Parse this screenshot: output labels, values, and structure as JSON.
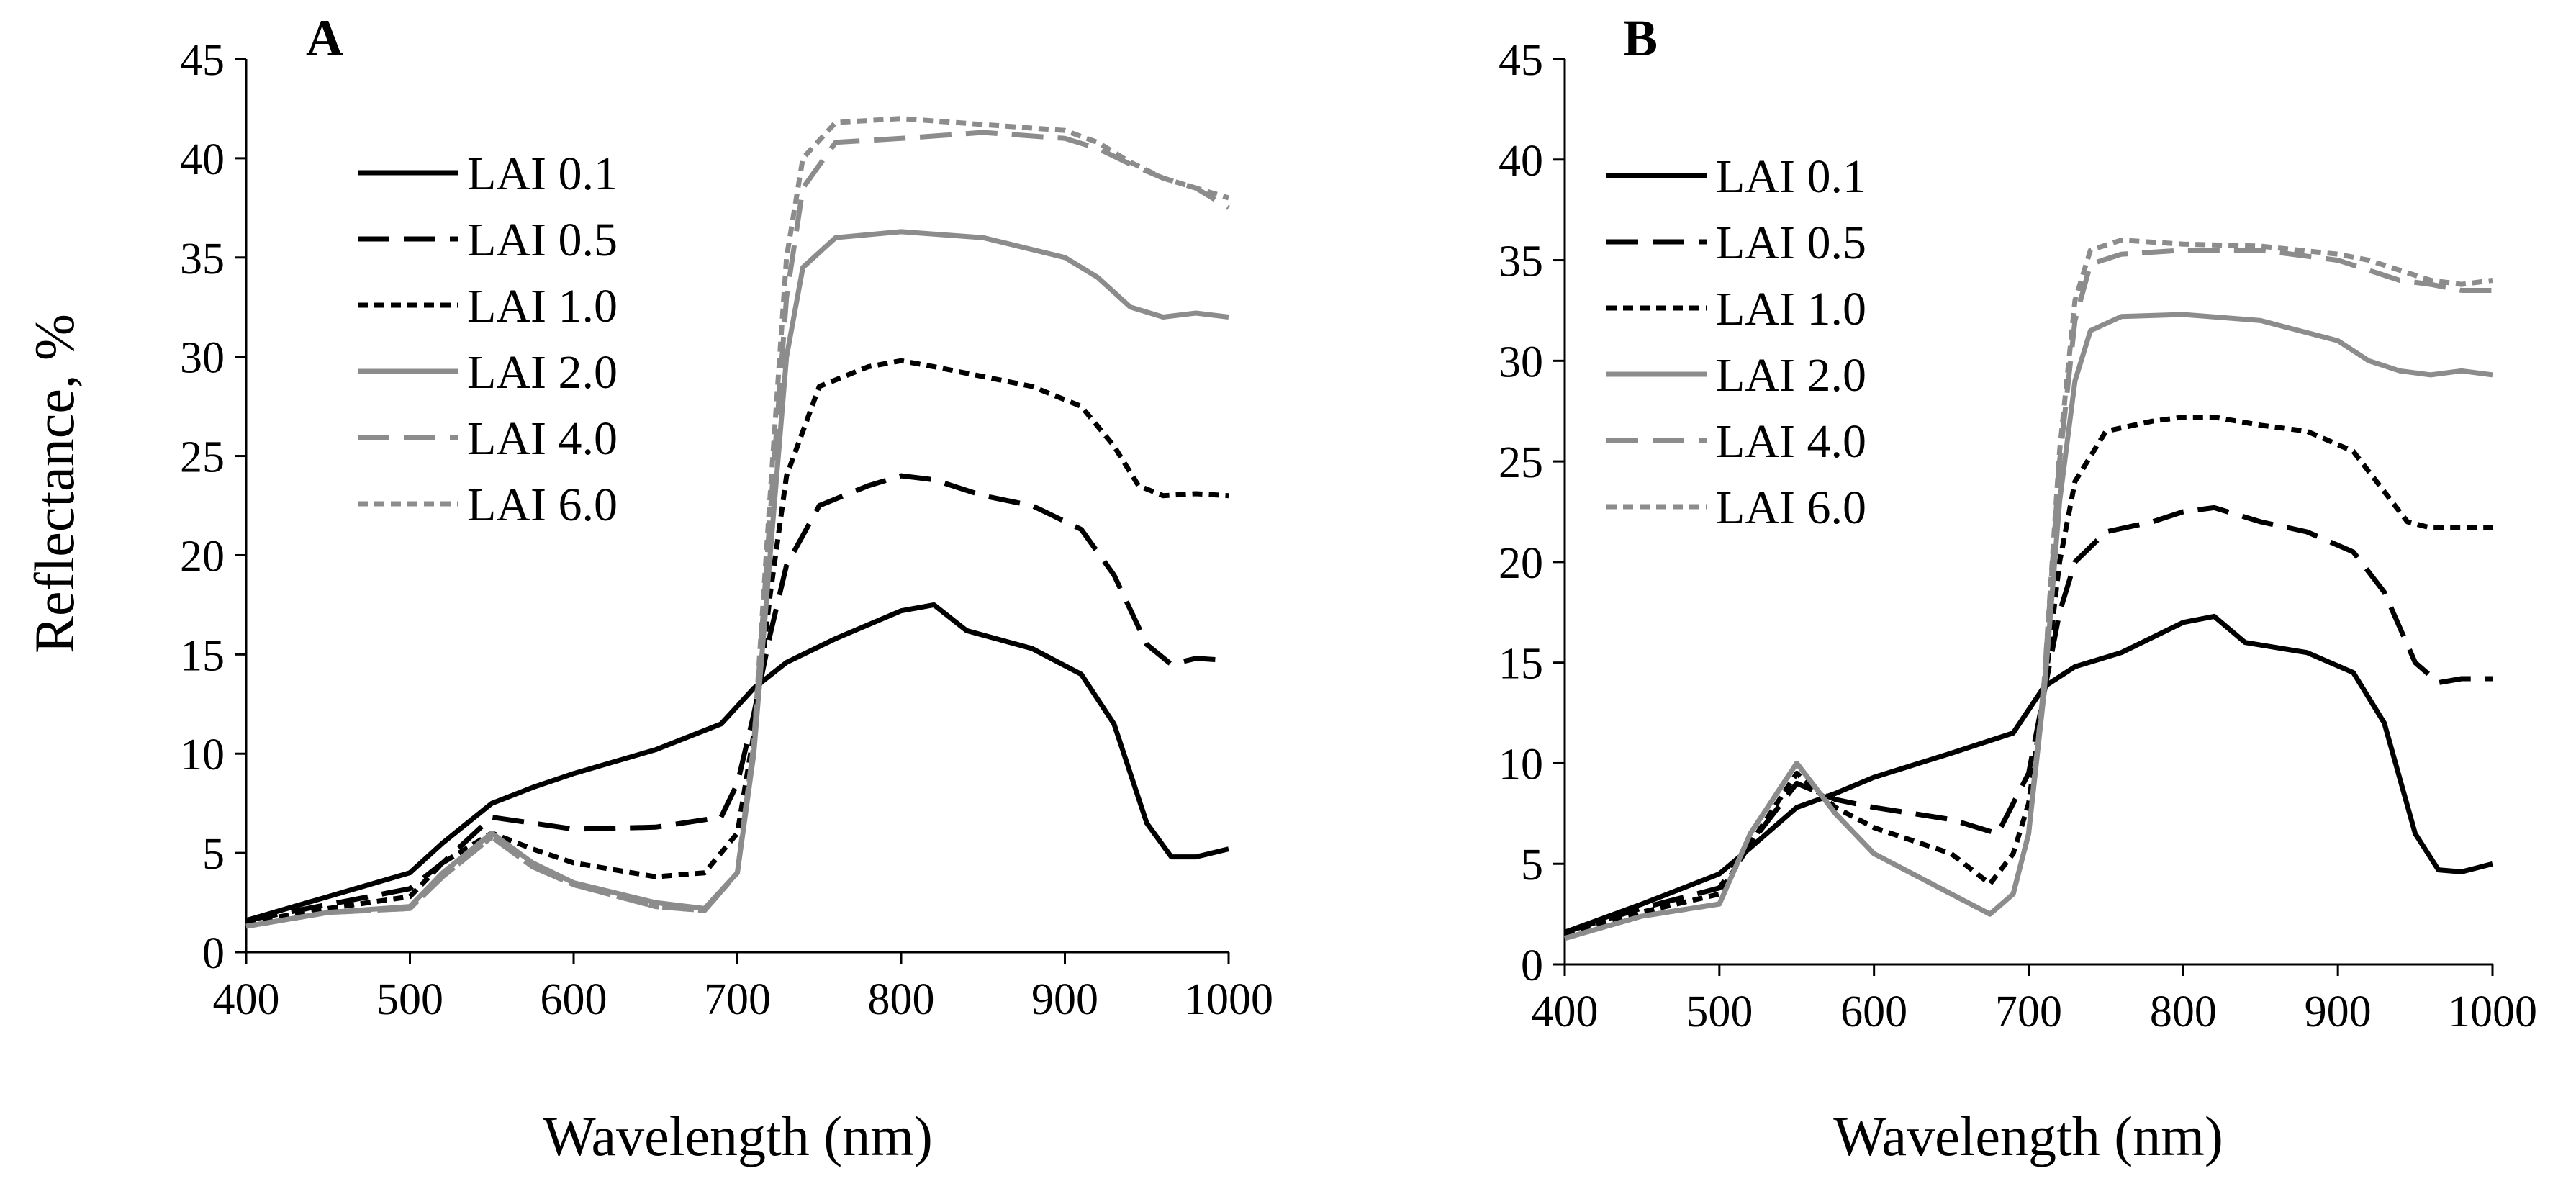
{
  "colors": {
    "black": "#000000",
    "gray": "#8c8c8c",
    "axis": "#000000"
  },
  "chart_data": [
    {
      "type": "line",
      "panel_label": "A",
      "title": "",
      "xlabel": "Wavelength (nm)",
      "ylabel": "Reflectance, %",
      "xlim": [
        400,
        1000
      ],
      "ylim": [
        0,
        45
      ],
      "xticks": [
        "400",
        "500",
        "600",
        "700",
        "800",
        "900",
        "1000"
      ],
      "yticks": [
        "0",
        "5",
        "10",
        "15",
        "20",
        "25",
        "30",
        "35",
        "40",
        "45"
      ],
      "grid": false,
      "legend_position": "upper-left",
      "series": [
        {
          "name": "LAI 0.1",
          "color": "black",
          "dash": "solid",
          "x": [
            400,
            450,
            500,
            520,
            550,
            575,
            600,
            650,
            690,
            710,
            730,
            760,
            800,
            820,
            840,
            880,
            910,
            930,
            950,
            965,
            980,
            1000
          ],
          "y": [
            1.6,
            2.8,
            4.0,
            5.5,
            7.5,
            8.3,
            9.0,
            10.2,
            11.5,
            13.3,
            14.6,
            15.8,
            17.2,
            17.5,
            16.2,
            15.3,
            14.0,
            11.5,
            6.5,
            4.8,
            4.8,
            5.2
          ]
        },
        {
          "name": "LAI 0.5",
          "color": "black",
          "dash": "longdash",
          "x": [
            400,
            450,
            500,
            520,
            550,
            575,
            600,
            650,
            690,
            700,
            710,
            720,
            730,
            750,
            780,
            800,
            820,
            850,
            880,
            910,
            930,
            950,
            965,
            980,
            1000
          ],
          "y": [
            1.6,
            2.4,
            3.2,
            4.5,
            6.8,
            6.5,
            6.2,
            6.3,
            6.8,
            8.5,
            12.0,
            16.0,
            19.5,
            22.5,
            23.5,
            24.0,
            23.8,
            23.0,
            22.5,
            21.3,
            19.0,
            15.5,
            14.5,
            14.8,
            14.7
          ]
        },
        {
          "name": "LAI 1.0",
          "color": "black",
          "dash": "shortdash",
          "x": [
            400,
            450,
            500,
            520,
            550,
            575,
            600,
            650,
            680,
            700,
            710,
            720,
            730,
            750,
            780,
            800,
            820,
            850,
            880,
            910,
            930,
            945,
            960,
            980,
            1000
          ],
          "y": [
            1.5,
            2.2,
            2.8,
            4.5,
            6.0,
            5.2,
            4.5,
            3.8,
            4.0,
            6.0,
            11.0,
            18.0,
            24.0,
            28.5,
            29.5,
            29.8,
            29.5,
            29.0,
            28.5,
            27.5,
            25.5,
            23.5,
            23.0,
            23.1,
            23.0
          ]
        },
        {
          "name": "LAI 2.0",
          "color": "gray",
          "dash": "solid",
          "x": [
            400,
            450,
            500,
            520,
            550,
            575,
            600,
            650,
            680,
            700,
            710,
            720,
            730,
            740,
            760,
            800,
            850,
            900,
            920,
            940,
            960,
            980,
            1000
          ],
          "y": [
            1.3,
            2.0,
            2.3,
            4.0,
            6.0,
            4.5,
            3.5,
            2.5,
            2.2,
            4.0,
            10.0,
            20.0,
            30.0,
            34.5,
            36.0,
            36.3,
            36.0,
            35.0,
            34.0,
            32.5,
            32.0,
            32.2,
            32.0
          ]
        },
        {
          "name": "LAI 4.0",
          "color": "gray",
          "dash": "longdash",
          "x": [
            400,
            450,
            500,
            520,
            550,
            575,
            600,
            650,
            680,
            700,
            710,
            720,
            730,
            740,
            760,
            800,
            850,
            900,
            920,
            940,
            960,
            980,
            1000
          ],
          "y": [
            1.3,
            2.0,
            2.2,
            3.8,
            5.8,
            4.3,
            3.4,
            2.3,
            2.1,
            4.0,
            10.5,
            22.0,
            33.0,
            38.5,
            40.8,
            41.0,
            41.3,
            41.0,
            40.5,
            39.7,
            39.0,
            38.5,
            37.5
          ]
        },
        {
          "name": "LAI 6.0",
          "color": "gray",
          "dash": "shortdash",
          "x": [
            400,
            450,
            500,
            520,
            550,
            575,
            600,
            650,
            680,
            700,
            710,
            720,
            730,
            740,
            760,
            800,
            850,
            900,
            920,
            940,
            960,
            980,
            1000
          ],
          "y": [
            1.3,
            2.0,
            2.2,
            3.8,
            5.8,
            4.3,
            3.4,
            2.3,
            2.1,
            4.0,
            10.5,
            23.0,
            35.0,
            40.0,
            41.8,
            42.0,
            41.7,
            41.4,
            40.8,
            39.8,
            39.0,
            38.5,
            38.0
          ]
        }
      ]
    },
    {
      "type": "line",
      "panel_label": "B",
      "title": "",
      "xlabel": "Wavelength (nm)",
      "ylabel": "",
      "xlim": [
        400,
        1000
      ],
      "ylim": [
        0,
        45
      ],
      "xticks": [
        "400",
        "500",
        "600",
        "700",
        "800",
        "900",
        "1000"
      ],
      "yticks": [
        "0",
        "5",
        "10",
        "15",
        "20",
        "25",
        "30",
        "35",
        "40",
        "45"
      ],
      "grid": false,
      "legend_position": "upper-left",
      "series": [
        {
          "name": "LAI 0.1",
          "color": "black",
          "dash": "solid",
          "x": [
            400,
            450,
            500,
            520,
            550,
            575,
            600,
            650,
            690,
            710,
            730,
            760,
            800,
            820,
            840,
            880,
            910,
            930,
            950,
            965,
            980,
            1000
          ],
          "y": [
            1.6,
            3.0,
            4.5,
            5.8,
            7.8,
            8.5,
            9.3,
            10.5,
            11.5,
            13.8,
            14.8,
            15.5,
            17.0,
            17.3,
            16.0,
            15.5,
            14.5,
            12.0,
            6.5,
            4.7,
            4.6,
            5.0
          ]
        },
        {
          "name": "LAI 0.5",
          "color": "black",
          "dash": "longdash",
          "x": [
            400,
            450,
            500,
            520,
            550,
            575,
            600,
            650,
            680,
            700,
            710,
            720,
            730,
            750,
            780,
            800,
            820,
            850,
            880,
            910,
            930,
            950,
            965,
            980,
            1000
          ],
          "y": [
            1.6,
            2.8,
            3.8,
            6.0,
            9.0,
            8.2,
            7.8,
            7.2,
            6.5,
            9.5,
            13.5,
            17.5,
            20.0,
            21.5,
            22.0,
            22.5,
            22.7,
            22.0,
            21.5,
            20.5,
            18.5,
            15.0,
            14.0,
            14.2,
            14.2
          ]
        },
        {
          "name": "LAI 1.0",
          "color": "black",
          "dash": "shortdash",
          "x": [
            400,
            450,
            500,
            520,
            550,
            575,
            600,
            650,
            675,
            690,
            700,
            710,
            720,
            730,
            750,
            780,
            800,
            820,
            850,
            880,
            910,
            930,
            945,
            960,
            980,
            1000
          ],
          "y": [
            1.5,
            2.6,
            3.5,
            6.0,
            9.5,
            7.8,
            6.8,
            5.5,
            4.0,
            5.5,
            8.0,
            13.5,
            20.0,
            24.0,
            26.5,
            27.0,
            27.2,
            27.2,
            26.8,
            26.5,
            25.5,
            23.5,
            22.0,
            21.7,
            21.7,
            21.7
          ]
        },
        {
          "name": "LAI 2.0",
          "color": "gray",
          "dash": "solid",
          "x": [
            400,
            450,
            500,
            520,
            550,
            575,
            600,
            650,
            675,
            690,
            700,
            710,
            720,
            730,
            740,
            760,
            800,
            850,
            900,
            920,
            940,
            960,
            980,
            1000
          ],
          "y": [
            1.3,
            2.4,
            3.0,
            6.5,
            10.0,
            7.5,
            5.5,
            3.5,
            2.5,
            3.5,
            6.5,
            13.5,
            23.0,
            29.0,
            31.5,
            32.2,
            32.3,
            32.0,
            31.0,
            30.0,
            29.5,
            29.3,
            29.5,
            29.3
          ]
        },
        {
          "name": "LAI 4.0",
          "color": "gray",
          "dash": "longdash",
          "x": [
            400,
            450,
            500,
            520,
            550,
            575,
            600,
            650,
            675,
            690,
            700,
            710,
            720,
            730,
            740,
            760,
            800,
            850,
            900,
            920,
            940,
            960,
            980,
            1000
          ],
          "y": [
            1.3,
            2.4,
            3.0,
            6.5,
            10.0,
            7.5,
            5.5,
            3.5,
            2.5,
            3.5,
            6.5,
            14.0,
            25.0,
            32.0,
            34.8,
            35.3,
            35.5,
            35.5,
            35.0,
            34.5,
            34.0,
            33.8,
            33.5,
            33.5
          ]
        },
        {
          "name": "LAI 6.0",
          "color": "gray",
          "dash": "shortdash",
          "x": [
            400,
            450,
            500,
            520,
            550,
            575,
            600,
            650,
            675,
            690,
            700,
            710,
            720,
            730,
            740,
            760,
            800,
            850,
            900,
            920,
            940,
            960,
            980,
            1000
          ],
          "y": [
            1.3,
            2.4,
            3.0,
            6.5,
            10.0,
            7.5,
            5.5,
            3.5,
            2.5,
            3.5,
            6.5,
            14.0,
            25.5,
            33.0,
            35.5,
            36.0,
            35.8,
            35.7,
            35.3,
            35.0,
            34.5,
            34.0,
            33.8,
            34.0
          ]
        }
      ]
    }
  ]
}
